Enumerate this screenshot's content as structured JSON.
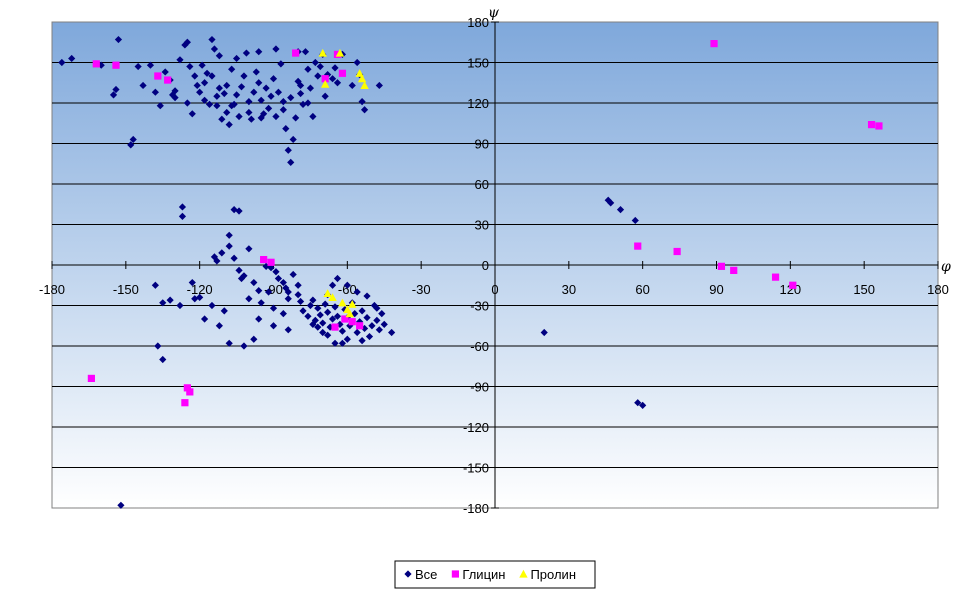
{
  "chart_data": {
    "type": "scatter",
    "xlabel": "φ",
    "ylabel": "ψ",
    "xlim": [
      -180,
      180
    ],
    "ylim": [
      -180,
      180
    ],
    "x_ticks": [
      -180,
      -150,
      -120,
      -90,
      -60,
      -30,
      0,
      30,
      60,
      90,
      120,
      150,
      180
    ],
    "y_ticks": [
      -180,
      -150,
      -120,
      -90,
      -60,
      -30,
      0,
      30,
      60,
      90,
      120,
      150,
      180
    ],
    "grid": "horizontal",
    "legend_position": "bottom-center",
    "background": "vertical gradient, light blue",
    "series": [
      {
        "name": "Все",
        "marker": "diamond",
        "color": "#000080",
        "points": [
          [
            -176,
            150
          ],
          [
            -172,
            153
          ],
          [
            -160,
            148
          ],
          [
            -153,
            167
          ],
          [
            -155,
            126
          ],
          [
            -154,
            130
          ],
          [
            -148,
            89
          ],
          [
            -147,
            93
          ],
          [
            -145,
            147
          ],
          [
            -143,
            133
          ],
          [
            -140,
            148
          ],
          [
            -138,
            128
          ],
          [
            -136,
            118
          ],
          [
            -134,
            143
          ],
          [
            -132,
            137
          ],
          [
            -131,
            126
          ],
          [
            -130,
            129
          ],
          [
            -128,
            152
          ],
          [
            -126,
            163
          ],
          [
            -125,
            165
          ],
          [
            -124,
            147
          ],
          [
            -123,
            112
          ],
          [
            -122,
            140
          ],
          [
            -121,
            133
          ],
          [
            -120,
            128
          ],
          [
            -119,
            148
          ],
          [
            -118,
            122
          ],
          [
            -117,
            142
          ],
          [
            -116,
            119
          ],
          [
            -115,
            167
          ],
          [
            -114,
            160
          ],
          [
            -113,
            118
          ],
          [
            -112,
            131
          ],
          [
            -111,
            108
          ],
          [
            -110,
            127
          ],
          [
            -109,
            113
          ],
          [
            -108,
            104
          ],
          [
            -107,
            145
          ],
          [
            -106,
            119
          ],
          [
            -105,
            126
          ],
          [
            -104,
            110
          ],
          [
            -103,
            132
          ],
          [
            -102,
            140
          ],
          [
            -101,
            157
          ],
          [
            -100,
            121
          ],
          [
            -99,
            108
          ],
          [
            -98,
            128
          ],
          [
            -97,
            143
          ],
          [
            -96,
            135
          ],
          [
            -95,
            122
          ],
          [
            -94,
            112
          ],
          [
            -93,
            131
          ],
          [
            -92,
            116
          ],
          [
            -91,
            125
          ],
          [
            -90,
            138
          ],
          [
            -89,
            110
          ],
          [
            -88,
            128
          ],
          [
            -87,
            149
          ],
          [
            -86,
            115
          ],
          [
            -85,
            101
          ],
          [
            -84,
            85
          ],
          [
            -83,
            76
          ],
          [
            -82,
            93
          ],
          [
            -81,
            109
          ],
          [
            -80,
            136
          ],
          [
            -79,
            127
          ],
          [
            -78,
            119
          ],
          [
            -77,
            158
          ],
          [
            -76,
            145
          ],
          [
            -75,
            131
          ],
          [
            -74,
            110
          ],
          [
            -73,
            150
          ],
          [
            -72,
            140
          ],
          [
            -71,
            147
          ],
          [
            -70,
            156
          ],
          [
            -69,
            125
          ],
          [
            -68,
            141
          ],
          [
            -66,
            138
          ],
          [
            -65,
            146
          ],
          [
            -64,
            135
          ],
          [
            -62,
            156
          ],
          [
            -58,
            133
          ],
          [
            -56,
            150
          ],
          [
            -55,
            141
          ],
          [
            -54,
            121
          ],
          [
            -53,
            115
          ],
          [
            -47,
            133
          ],
          [
            -107,
            118
          ],
          [
            -109,
            133
          ],
          [
            -113,
            125
          ],
          [
            -118,
            135
          ],
          [
            -100,
            113
          ],
          [
            -95,
            109
          ],
          [
            -86,
            121
          ],
          [
            -83,
            124
          ],
          [
            -79,
            133
          ],
          [
            -76,
            120
          ],
          [
            -112,
            155
          ],
          [
            -105,
            153
          ],
          [
            -96,
            158
          ],
          [
            -89,
            160
          ],
          [
            -80,
            158
          ],
          [
            -125,
            120
          ],
          [
            -130,
            124
          ],
          [
            -115,
            140
          ],
          [
            -127,
            43
          ],
          [
            -127,
            36
          ],
          [
            -106,
            41
          ],
          [
            -104,
            40
          ],
          [
            -108,
            14
          ],
          [
            -108,
            22
          ],
          [
            -114,
            6
          ],
          [
            -113,
            3
          ],
          [
            -111,
            9
          ],
          [
            -106,
            5
          ],
          [
            -104,
            -4
          ],
          [
            -103,
            -10
          ],
          [
            -102,
            -8
          ],
          [
            -100,
            12
          ],
          [
            -98,
            -13
          ],
          [
            -96,
            -19
          ],
          [
            -94,
            4
          ],
          [
            -93,
            -1
          ],
          [
            -91,
            -2
          ],
          [
            -89,
            -5
          ],
          [
            -88,
            -10
          ],
          [
            -86,
            -13
          ],
          [
            -85,
            -17
          ],
          [
            -84,
            -20
          ],
          [
            -82,
            -7
          ],
          [
            -80,
            -22
          ],
          [
            -79,
            -27
          ],
          [
            -78,
            -34
          ],
          [
            -76,
            -38
          ],
          [
            -75,
            -30
          ],
          [
            -74,
            -26
          ],
          [
            -73,
            -41
          ],
          [
            -72,
            -32
          ],
          [
            -71,
            -37
          ],
          [
            -70,
            -43
          ],
          [
            -69,
            -29
          ],
          [
            -68,
            -35
          ],
          [
            -67,
            -46
          ],
          [
            -66,
            -40
          ],
          [
            -65,
            -31
          ],
          [
            -64,
            -38
          ],
          [
            -63,
            -44
          ],
          [
            -62,
            -49
          ],
          [
            -61,
            -33
          ],
          [
            -60,
            -39
          ],
          [
            -59,
            -45
          ],
          [
            -58,
            -28
          ],
          [
            -57,
            -36
          ],
          [
            -56,
            -50
          ],
          [
            -55,
            -42
          ],
          [
            -54,
            -34
          ],
          [
            -53,
            -47
          ],
          [
            -52,
            -39
          ],
          [
            -51,
            -53
          ],
          [
            -50,
            -45
          ],
          [
            -49,
            -30
          ],
          [
            -48,
            -41
          ],
          [
            -47,
            -48
          ],
          [
            -46,
            -36
          ],
          [
            -45,
            -44
          ],
          [
            -42,
            -50
          ],
          [
            -65,
            -58
          ],
          [
            -62,
            -58
          ],
          [
            -60,
            -55
          ],
          [
            -54,
            -56
          ],
          [
            -68,
            -52
          ],
          [
            -70,
            -50
          ],
          [
            -72,
            -46
          ],
          [
            -74,
            -44
          ],
          [
            -68,
            -22
          ],
          [
            -66,
            -15
          ],
          [
            -64,
            -10
          ],
          [
            -60,
            -15
          ],
          [
            -56,
            -20
          ],
          [
            -52,
            -23
          ],
          [
            -48,
            -32
          ],
          [
            -100,
            -25
          ],
          [
            -95,
            -28
          ],
          [
            -90,
            -32
          ],
          [
            -86,
            -36
          ],
          [
            -110,
            -34
          ],
          [
            -115,
            -30
          ],
          [
            -118,
            -40
          ],
          [
            -120,
            -24
          ],
          [
            -123,
            -13
          ],
          [
            -128,
            -30
          ],
          [
            -132,
            -26
          ],
          [
            -135,
            -28
          ],
          [
            -138,
            -15
          ],
          [
            -137,
            -60
          ],
          [
            -135,
            -70
          ],
          [
            -122,
            -25
          ],
          [
            -112,
            -45
          ],
          [
            -108,
            -58
          ],
          [
            -102,
            -60
          ],
          [
            -98,
            -55
          ],
          [
            -90,
            -45
          ],
          [
            -84,
            -48
          ],
          [
            -96,
            -40
          ],
          [
            -84,
            -25
          ],
          [
            -80,
            -15
          ],
          [
            -92,
            -20
          ],
          [
            -152,
            -178
          ],
          [
            20,
            -50
          ],
          [
            46,
            48
          ],
          [
            47,
            46
          ],
          [
            51,
            41
          ],
          [
            57,
            33
          ],
          [
            58,
            -102
          ],
          [
            60,
            -104
          ]
        ]
      },
      {
        "name": "Глицин",
        "marker": "square",
        "color": "#ff00ff",
        "points": [
          [
            -162,
            149
          ],
          [
            -154,
            148
          ],
          [
            -137,
            140
          ],
          [
            -133,
            137
          ],
          [
            -81,
            157
          ],
          [
            -69,
            138
          ],
          [
            -64,
            156
          ],
          [
            -62,
            142
          ],
          [
            -94,
            4
          ],
          [
            -91,
            2
          ],
          [
            -164,
            -84
          ],
          [
            -125,
            -91
          ],
          [
            -124,
            -94
          ],
          [
            -126,
            -102
          ],
          [
            -65,
            -46
          ],
          [
            -61,
            -40
          ],
          [
            -58,
            -42
          ],
          [
            -55,
            -45
          ],
          [
            58,
            14
          ],
          [
            74,
            10
          ],
          [
            89,
            164
          ],
          [
            92,
            -1
          ],
          [
            97,
            -4
          ],
          [
            114,
            -9
          ],
          [
            121,
            -15
          ],
          [
            153,
            104
          ],
          [
            156,
            103
          ]
        ]
      },
      {
        "name": "Пролин",
        "marker": "triangle",
        "color": "#ffff00",
        "points": [
          [
            -70,
            157
          ],
          [
            -69,
            134
          ],
          [
            -63,
            157
          ],
          [
            -55,
            142
          ],
          [
            -54,
            138
          ],
          [
            -53,
            133
          ],
          [
            -68,
            -21
          ],
          [
            -66,
            -24
          ],
          [
            -62,
            -28
          ],
          [
            -60,
            -33
          ],
          [
            -58,
            -29
          ],
          [
            -59,
            -36
          ]
        ]
      }
    ]
  }
}
